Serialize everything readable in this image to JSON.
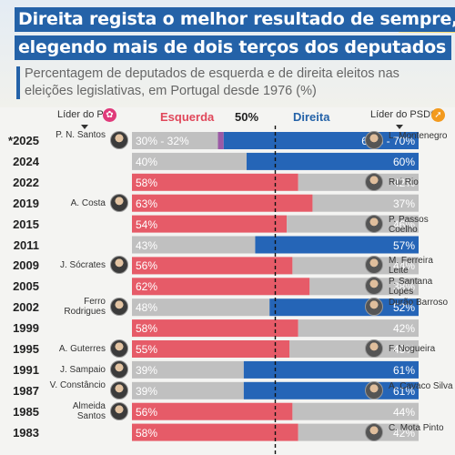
{
  "header": {
    "title_line1": "Direita regista o melhor resultado de sempre,",
    "title_line2": "elegendo mais de dois terços dos deputados",
    "subtitle": "Percentagem de deputados de esquerda e de direita eleitos nas eleições legislativas, em Portugal desde 1976 (%)"
  },
  "columns": {
    "left_leader_head": "Líder do PS",
    "right_leader_head": "Líder do PSD**",
    "left_legend": "Esquerda",
    "mid_legend": "50%",
    "right_legend": "Direita"
  },
  "colors": {
    "left_fill": "#e65b68",
    "left_muted": "#c0c0c0",
    "right_fill": "#2565b7",
    "right_muted": "#c0c0c0",
    "uncertainty": "#9b5aa6",
    "title_bg": "#2462a8"
  },
  "chart_data": {
    "type": "bar",
    "orientation": "horizontal-stacked",
    "title": "Direita regista o melhor resultado de sempre, elegendo mais de dois terços dos deputados",
    "xlabel": "",
    "ylabel": "",
    "xlim": [
      0,
      100
    ],
    "reference_line": 50,
    "series": [
      {
        "name": "Esquerda"
      },
      {
        "name": "Direita"
      }
    ],
    "rows": [
      {
        "year": "*2025",
        "left": 30,
        "left_upper": 32,
        "right": 68,
        "right_upper": 70,
        "left_label": "30% - 32%",
        "right_label": "68% - 70%",
        "winner": "right",
        "left_leader": "P. N. Santos",
        "right_leader": "L. Montenegro"
      },
      {
        "year": "2024",
        "left": 40,
        "right": 60,
        "left_label": "40%",
        "right_label": "60%",
        "winner": "right",
        "left_leader": "",
        "right_leader": ""
      },
      {
        "year": "2022",
        "left": 58,
        "right": 42,
        "left_label": "58%",
        "right_label": "42%",
        "winner": "left",
        "left_leader": "",
        "right_leader": "Rui Rio"
      },
      {
        "year": "2019",
        "left": 63,
        "right": 37,
        "left_label": "63%",
        "right_label": "37%",
        "winner": "left",
        "left_leader": "A. Costa",
        "right_leader": ""
      },
      {
        "year": "2015",
        "left": 54,
        "right": 46,
        "left_label": "54%",
        "right_label": "46%",
        "winner": "left",
        "left_leader": "",
        "right_leader": "P. Passos Coelho"
      },
      {
        "year": "2011",
        "left": 43,
        "right": 57,
        "left_label": "43%",
        "right_label": "57%",
        "winner": "right",
        "left_leader": "",
        "right_leader": ""
      },
      {
        "year": "2009",
        "left": 56,
        "right": 44,
        "left_label": "56%",
        "right_label": "44%",
        "winner": "left",
        "left_leader": "J. Sócrates",
        "right_leader": "M. Ferreira Leite"
      },
      {
        "year": "2005",
        "left": 62,
        "right": 38,
        "left_label": "62%",
        "right_label": "38%",
        "winner": "left",
        "left_leader": "",
        "right_leader": "P. Santana Lopes"
      },
      {
        "year": "2002",
        "left": 48,
        "right": 52,
        "left_label": "48%",
        "right_label": "52%",
        "winner": "right",
        "left_leader": "Ferro Rodrigues",
        "right_leader": "Durão Barroso"
      },
      {
        "year": "1999",
        "left": 58,
        "right": 42,
        "left_label": "58%",
        "right_label": "42%",
        "winner": "left",
        "left_leader": "",
        "right_leader": ""
      },
      {
        "year": "1995",
        "left": 55,
        "right": 45,
        "left_label": "55%",
        "right_label": "45%",
        "winner": "left",
        "left_leader": "A. Guterres",
        "right_leader": "F. Nogueira"
      },
      {
        "year": "1991",
        "left": 39,
        "right": 61,
        "left_label": "39%",
        "right_label": "61%",
        "winner": "right",
        "left_leader": "J. Sampaio",
        "right_leader": ""
      },
      {
        "year": "1987",
        "left": 39,
        "right": 61,
        "left_label": "39%",
        "right_label": "61%",
        "winner": "right",
        "left_leader": "V. Constâncio",
        "right_leader": "A. Cavaco Silva"
      },
      {
        "year": "1985",
        "left": 56,
        "right": 44,
        "left_label": "56%",
        "right_label": "44%",
        "winner": "left",
        "left_leader": "Almeida Santos",
        "right_leader": ""
      },
      {
        "year": "1983",
        "left": 58,
        "right": 42,
        "left_label": "58%",
        "right_label": "42%",
        "winner": "left",
        "left_leader": "",
        "right_leader": "C. Mota Pinto"
      }
    ]
  }
}
